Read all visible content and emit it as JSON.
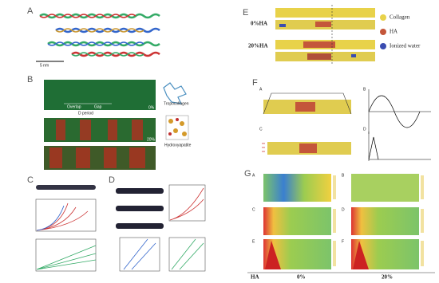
{
  "panels": {
    "A": {
      "label": "A",
      "scale": "5 nm"
    },
    "B": {
      "label": "B",
      "overlap": "Overlap",
      "gap": "Gap",
      "period": "D period",
      "low": "0%",
      "high": "20%",
      "tropocollagen": "Tropocollagen",
      "hydroxyapatite": "Hydroxyapatite"
    },
    "C": {
      "label": "C"
    },
    "D": {
      "label": "D"
    },
    "E": {
      "label": "E",
      "row_low": "0%HA",
      "row_high": "20%HA",
      "legend": [
        "Collagen",
        "HA",
        "Ionized water"
      ]
    },
    "F": {
      "label": "F",
      "sub": [
        "A",
        "B",
        "C",
        "D"
      ]
    },
    "G": {
      "label": "G",
      "sub": [
        "A",
        "B",
        "C",
        "D",
        "E",
        "F"
      ],
      "footer": [
        "HA",
        "0%",
        "20%"
      ]
    }
  }
}
